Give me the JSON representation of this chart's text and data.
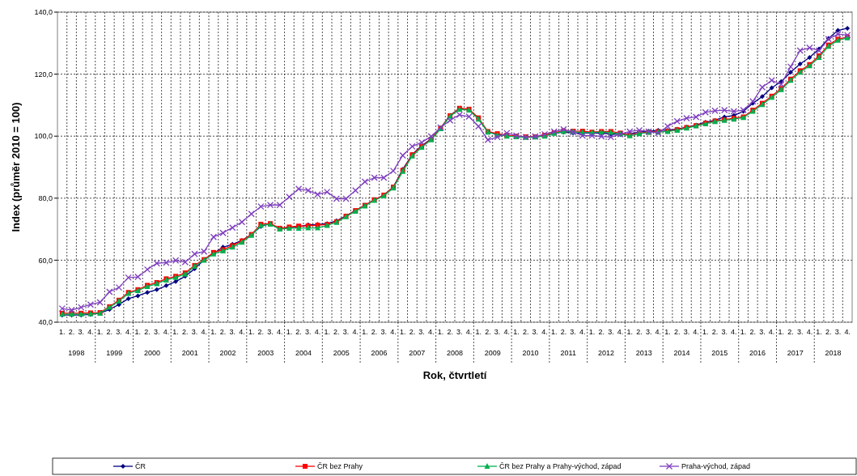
{
  "chart_data": {
    "type": "line",
    "xlabel": "Rok, čtvrtletí",
    "ylabel": "Index (průměr 2010 = 100)",
    "categories": [
      "1.",
      "2.",
      "3.",
      "4.",
      "1.",
      "2.",
      "3.",
      "4.",
      "1.",
      "2.",
      "3.",
      "4.",
      "1.",
      "2.",
      "3.",
      "4.",
      "1.",
      "2.",
      "3.",
      "4.",
      "1.",
      "2.",
      "3.",
      "4.",
      "1.",
      "2.",
      "3.",
      "4.",
      "1.",
      "2.",
      "3.",
      "4.",
      "1.",
      "2.",
      "3.",
      "4.",
      "1.",
      "2.",
      "3.",
      "4.",
      "1.",
      "2.",
      "3.",
      "4.",
      "1.",
      "2.",
      "3.",
      "4.",
      "1.",
      "2.",
      "3.",
      "4.",
      "1.",
      "2.",
      "3.",
      "4.",
      "1.",
      "2.",
      "3.",
      "4.",
      "1.",
      "2.",
      "3.",
      "4.",
      "1.",
      "2.",
      "3.",
      "4.",
      "1.",
      "2.",
      "3.",
      "4.",
      "1.",
      "2.",
      "3.",
      "4.",
      "1.",
      "2.",
      "3.",
      "4.",
      "1.",
      "2.",
      "3.",
      "4."
    ],
    "annotations": [
      "1998",
      "1999",
      "2000",
      "2001",
      "2002",
      "2003",
      "2004",
      "2005",
      "2006",
      "2007",
      "2008",
      "2009",
      "2010",
      "2011",
      "2012",
      "2013",
      "2014",
      "2015",
      "2016",
      "2017",
      "2018"
    ],
    "ylim": [
      40,
      140
    ],
    "yticks": [
      {
        "value": 40,
        "label": "40,0"
      },
      {
        "value": 60,
        "label": "60,0"
      },
      {
        "value": 80,
        "label": "80,0"
      },
      {
        "value": 100,
        "label": "100,0"
      },
      {
        "value": 120,
        "label": "120,0"
      },
      {
        "value": 140,
        "label": "140,0"
      }
    ],
    "grid": true,
    "legend": "bottom",
    "series": [
      {
        "name": "ČR",
        "color": "#000080",
        "marker": "diamond",
        "values": [
          42.3,
          42.3,
          42.3,
          42.5,
          42.9,
          44.1,
          45.7,
          47.6,
          48.5,
          49.6,
          50.5,
          51.8,
          53.1,
          54.8,
          57.2,
          60.1,
          62.2,
          64.2,
          65.1,
          66.4,
          68.2,
          70.9,
          71.8,
          70.1,
          70.5,
          70.8,
          71.4,
          71.5,
          71.8,
          72.7,
          74.3,
          76.0,
          77.7,
          79.5,
          81.0,
          83.6,
          89.3,
          94.1,
          96.9,
          99.1,
          102.6,
          106.7,
          108.9,
          108.6,
          105.6,
          101.3,
          100.6,
          100.2,
          99.9,
          99.7,
          99.7,
          100.2,
          101.0,
          101.3,
          101.0,
          101.0,
          101.0,
          101.0,
          100.7,
          100.6,
          100.8,
          101.3,
          101.6,
          101.9,
          101.9,
          102.3,
          102.9,
          103.6,
          104.5,
          105.1,
          106.2,
          106.7,
          108.0,
          110.6,
          112.8,
          115.6,
          117.6,
          120.6,
          123.3,
          125.4,
          128.1,
          131.5,
          134.1,
          134.8
        ]
      },
      {
        "name": "ČR bez Prahy",
        "color": "#ff0000",
        "marker": "square",
        "values": [
          42.9,
          42.9,
          42.9,
          43.0,
          43.1,
          45.0,
          47.1,
          49.6,
          50.5,
          51.9,
          52.8,
          54.0,
          54.8,
          55.9,
          58.3,
          60.2,
          62.5,
          63.4,
          64.7,
          66.2,
          68.3,
          71.6,
          71.8,
          70.3,
          70.7,
          71.0,
          71.1,
          71.3,
          71.5,
          72.4,
          74.2,
          76.0,
          77.7,
          79.5,
          81.0,
          83.6,
          89.0,
          94.0,
          96.7,
          99.0,
          102.6,
          106.6,
          109.0,
          108.7,
          105.9,
          101.5,
          100.8,
          100.3,
          100.0,
          99.8,
          99.8,
          100.3,
          101.1,
          101.7,
          101.6,
          101.6,
          101.3,
          101.5,
          101.5,
          101.0,
          100.4,
          101.0,
          101.3,
          101.5,
          101.6,
          102.1,
          102.8,
          103.4,
          104.2,
          104.9,
          105.3,
          105.8,
          106.2,
          108.4,
          110.6,
          112.9,
          115.4,
          118.4,
          121.1,
          123.1,
          125.9,
          129.4,
          131.3,
          132.0
        ]
      },
      {
        "name": "ČR bez Prahy a Prahy-východ, západ",
        "color": "#00b050",
        "marker": "triangle",
        "values": [
          42.6,
          42.6,
          42.6,
          42.7,
          42.9,
          44.8,
          46.8,
          49.3,
          50.2,
          51.5,
          52.4,
          53.6,
          54.4,
          55.5,
          58.0,
          60.0,
          62.0,
          63.0,
          64.2,
          65.8,
          68.0,
          71.2,
          71.6,
          70.0,
          70.3,
          70.3,
          70.4,
          70.4,
          71.2,
          72.2,
          74.0,
          75.8,
          77.5,
          79.3,
          80.7,
          83.3,
          88.6,
          93.6,
          96.4,
          98.8,
          102.4,
          106.4,
          108.7,
          108.4,
          105.5,
          101.3,
          100.4,
          100.0,
          99.8,
          99.6,
          99.7,
          100.0,
          100.9,
          101.5,
          101.4,
          101.2,
          101.2,
          101.3,
          101.2,
          100.7,
          100.1,
          100.8,
          101.2,
          101.3,
          101.5,
          101.9,
          102.6,
          103.3,
          104.0,
          104.7,
          105.1,
          105.5,
          106.0,
          108.0,
          110.2,
          112.5,
          115.0,
          118.0,
          120.6,
          122.7,
          125.4,
          129.0,
          130.9,
          131.7
        ]
      },
      {
        "name": "Praha-východ, západ",
        "color": "#7f3fbf",
        "marker": "cross",
        "values": [
          44.4,
          43.9,
          44.8,
          45.7,
          46.4,
          49.8,
          51.2,
          54.4,
          54.6,
          57.0,
          59.0,
          59.2,
          59.9,
          59.4,
          62.0,
          62.8,
          67.5,
          68.8,
          70.5,
          72.3,
          74.9,
          77.3,
          77.8,
          77.8,
          80.4,
          83.0,
          82.5,
          81.2,
          82.0,
          79.8,
          79.8,
          82.5,
          85.3,
          86.6,
          86.6,
          88.8,
          93.8,
          96.7,
          98.0,
          99.9,
          102.8,
          105.1,
          106.9,
          106.3,
          103.2,
          98.8,
          99.7,
          101.0,
          100.2,
          99.7,
          99.9,
          100.6,
          101.5,
          102.2,
          101.3,
          100.2,
          100.2,
          99.9,
          99.7,
          100.6,
          101.5,
          101.9,
          101.5,
          101.0,
          103.2,
          104.8,
          105.8,
          106.2,
          107.7,
          108.2,
          108.4,
          108.0,
          108.4,
          111.2,
          115.8,
          118.0,
          116.7,
          122.4,
          127.6,
          128.5,
          127.6,
          131.3,
          132.9,
          132.6
        ]
      }
    ]
  }
}
